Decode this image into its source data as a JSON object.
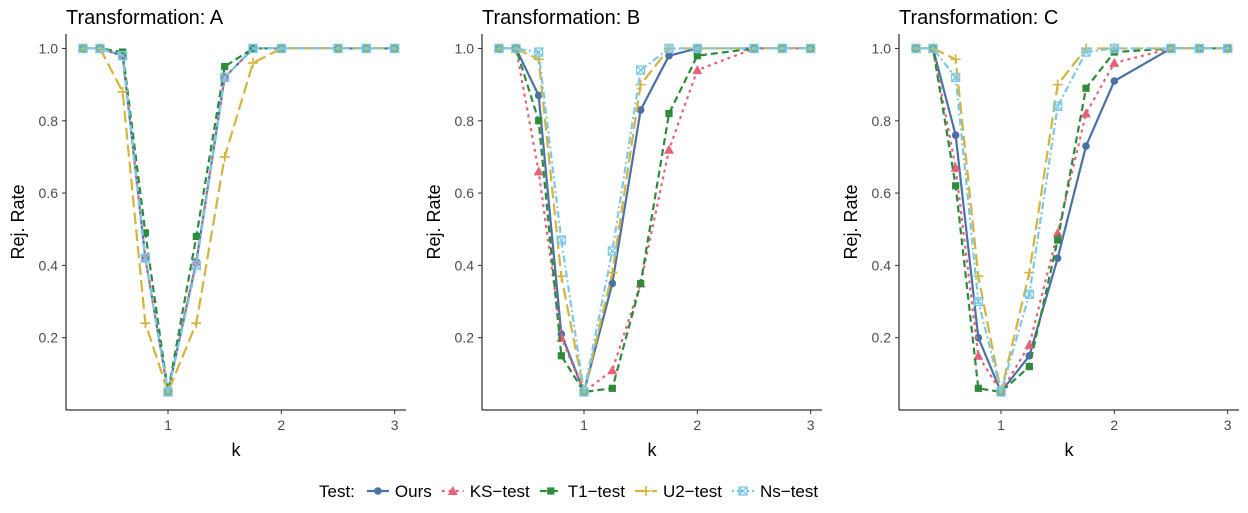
{
  "legend": {
    "title": "Test:",
    "entries": [
      {
        "label": "Ours",
        "color": "#4a72a6",
        "marker": "circle",
        "dash": "solid"
      },
      {
        "label": "KS−test",
        "color": "#e8607a",
        "marker": "triangle",
        "dash": "dotted"
      },
      {
        "label": "T1−test",
        "color": "#2e8b3a",
        "marker": "square",
        "dash": "dashed"
      },
      {
        "label": "U2−test",
        "color": "#d4b43c",
        "marker": "plus",
        "dash": "longdash"
      },
      {
        "label": "Ns−test",
        "color": "#7cc8e8",
        "marker": "boxcross",
        "dash": "dotdash"
      }
    ]
  },
  "chart_data": [
    {
      "type": "line",
      "title": "Transformation: A",
      "xlabel": "k",
      "ylabel": "Rej. Rate",
      "xlim": [
        0.1,
        3.1
      ],
      "ylim": [
        0.0,
        1.04
      ],
      "xticks": [
        "1",
        "2",
        "3"
      ],
      "yticks": [
        "0.2",
        "0.4",
        "0.6",
        "0.8",
        "1.0"
      ],
      "x": [
        0.25,
        0.4,
        0.6,
        0.8,
        1.0,
        1.25,
        1.5,
        1.75,
        2.0,
        2.5,
        2.75,
        3.0
      ],
      "series": [
        {
          "name": "Ours",
          "values": [
            1.0,
            1.0,
            0.98,
            0.42,
            0.05,
            0.41,
            0.92,
            1.0,
            1.0,
            1.0,
            1.0,
            1.0
          ]
        },
        {
          "name": "KS−test",
          "values": [
            1.0,
            1.0,
            0.98,
            0.42,
            0.05,
            0.41,
            0.92,
            1.0,
            1.0,
            1.0,
            1.0,
            1.0
          ]
        },
        {
          "name": "T1−test",
          "values": [
            1.0,
            1.0,
            0.99,
            0.49,
            0.05,
            0.48,
            0.95,
            1.0,
            1.0,
            1.0,
            1.0,
            1.0
          ]
        },
        {
          "name": "U2−test",
          "values": [
            1.0,
            1.0,
            0.88,
            0.24,
            0.05,
            0.24,
            0.7,
            0.96,
            1.0,
            1.0,
            1.0,
            1.0
          ]
        },
        {
          "name": "Ns−test",
          "values": [
            1.0,
            1.0,
            0.98,
            0.42,
            0.05,
            0.4,
            0.92,
            1.0,
            1.0,
            1.0,
            1.0,
            1.0
          ]
        }
      ]
    },
    {
      "type": "line",
      "title": "Transformation: B",
      "xlabel": "k",
      "ylabel": "Rej. Rate",
      "xlim": [
        0.1,
        3.1
      ],
      "ylim": [
        0.0,
        1.04
      ],
      "xticks": [
        "1",
        "2",
        "3"
      ],
      "yticks": [
        "0.2",
        "0.4",
        "0.6",
        "0.8",
        "1.0"
      ],
      "x": [
        0.25,
        0.4,
        0.6,
        0.8,
        1.0,
        1.25,
        1.5,
        1.75,
        2.0,
        2.5,
        2.75,
        3.0
      ],
      "series": [
        {
          "name": "Ours",
          "values": [
            1.0,
            1.0,
            0.87,
            0.21,
            0.05,
            0.35,
            0.83,
            0.98,
            1.0,
            1.0,
            1.0,
            1.0
          ]
        },
        {
          "name": "KS−test",
          "values": [
            1.0,
            1.0,
            0.66,
            0.2,
            0.05,
            0.11,
            0.35,
            0.72,
            0.94,
            1.0,
            1.0,
            1.0
          ]
        },
        {
          "name": "T1−test",
          "values": [
            1.0,
            1.0,
            0.8,
            0.15,
            0.05,
            0.06,
            0.35,
            0.82,
            0.98,
            1.0,
            1.0,
            1.0
          ]
        },
        {
          "name": "U2−test",
          "values": [
            1.0,
            1.0,
            0.97,
            0.37,
            0.05,
            0.38,
            0.9,
            1.0,
            1.0,
            1.0,
            1.0,
            1.0
          ]
        },
        {
          "name": "Ns−test",
          "values": [
            1.0,
            1.0,
            0.99,
            0.47,
            0.05,
            0.44,
            0.94,
            1.0,
            1.0,
            1.0,
            1.0,
            1.0
          ]
        }
      ]
    },
    {
      "type": "line",
      "title": "Transformation: C",
      "xlabel": "k",
      "ylabel": "Rej. Rate",
      "xlim": [
        0.1,
        3.1
      ],
      "ylim": [
        0.0,
        1.04
      ],
      "xticks": [
        "1",
        "2",
        "3"
      ],
      "yticks": [
        "0.2",
        "0.4",
        "0.6",
        "0.8",
        "1.0"
      ],
      "x": [
        0.25,
        0.4,
        0.6,
        0.8,
        1.0,
        1.25,
        1.5,
        1.75,
        2.0,
        2.5,
        2.75,
        3.0
      ],
      "series": [
        {
          "name": "Ours",
          "values": [
            1.0,
            1.0,
            0.76,
            0.2,
            0.05,
            0.15,
            0.42,
            0.73,
            0.91,
            1.0,
            1.0,
            1.0
          ]
        },
        {
          "name": "KS−test",
          "values": [
            1.0,
            1.0,
            0.67,
            0.15,
            0.05,
            0.18,
            0.49,
            0.82,
            0.96,
            1.0,
            1.0,
            1.0
          ]
        },
        {
          "name": "T1−test",
          "values": [
            1.0,
            1.0,
            0.62,
            0.06,
            0.05,
            0.12,
            0.47,
            0.89,
            0.99,
            1.0,
            1.0,
            1.0
          ]
        },
        {
          "name": "U2−test",
          "values": [
            1.0,
            1.0,
            0.97,
            0.37,
            0.05,
            0.38,
            0.9,
            1.0,
            1.0,
            1.0,
            1.0,
            1.0
          ]
        },
        {
          "name": "Ns−test",
          "values": [
            1.0,
            1.0,
            0.92,
            0.3,
            0.05,
            0.32,
            0.84,
            0.99,
            1.0,
            1.0,
            1.0,
            1.0
          ]
        }
      ]
    }
  ]
}
